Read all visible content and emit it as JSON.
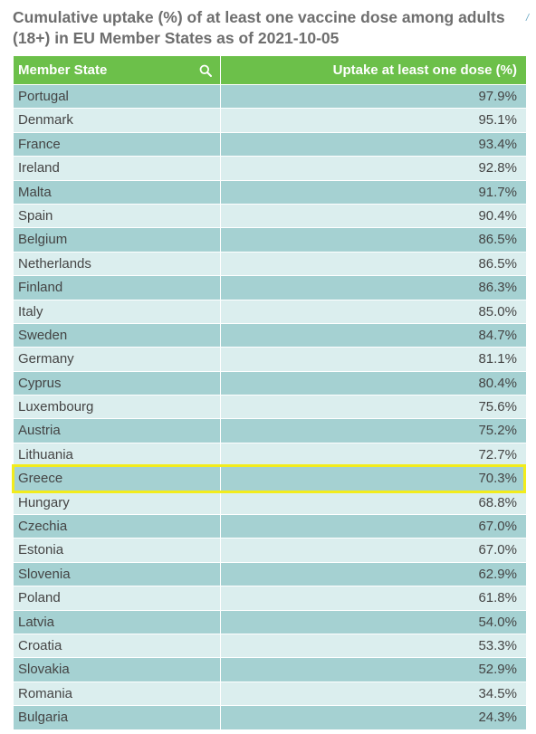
{
  "title_lines": [
    "Cumulative uptake (%) of at least one vaccine dose among adults",
    "(18+) in EU Member States as of 2021-10-05"
  ],
  "corner_mark": "/",
  "header": {
    "state": "Member State",
    "uptake": "Uptake at least one dose (%)"
  },
  "highlight": "Greece",
  "colors": {
    "header": "#6cc04a",
    "row_odd": "#a5d1d2",
    "row_even": "#dbeeee",
    "highlight_border": "#f2ec1c"
  },
  "icons": {
    "search": "search-icon",
    "sort": "sort-descending-icon"
  },
  "chart_data": {
    "type": "table",
    "title": "Cumulative uptake (%) of at least one vaccine dose among adults (18+) in EU Member States as of 2021-10-05",
    "columns": [
      "Member State",
      "Uptake at least one dose (%)"
    ],
    "sort": "descending",
    "rows": [
      {
        "state": "Portugal",
        "uptake": "97.9%"
      },
      {
        "state": "Denmark",
        "uptake": "95.1%"
      },
      {
        "state": "France",
        "uptake": "93.4%"
      },
      {
        "state": "Ireland",
        "uptake": "92.8%"
      },
      {
        "state": "Malta",
        "uptake": "91.7%"
      },
      {
        "state": "Spain",
        "uptake": "90.4%"
      },
      {
        "state": "Belgium",
        "uptake": "86.5%"
      },
      {
        "state": "Netherlands",
        "uptake": "86.5%"
      },
      {
        "state": "Finland",
        "uptake": "86.3%"
      },
      {
        "state": "Italy",
        "uptake": "85.0%"
      },
      {
        "state": "Sweden",
        "uptake": "84.7%"
      },
      {
        "state": "Germany",
        "uptake": "81.1%"
      },
      {
        "state": "Cyprus",
        "uptake": "80.4%"
      },
      {
        "state": "Luxembourg",
        "uptake": "75.6%"
      },
      {
        "state": "Austria",
        "uptake": "75.2%"
      },
      {
        "state": "Lithuania",
        "uptake": "72.7%"
      },
      {
        "state": "Greece",
        "uptake": "70.3%"
      },
      {
        "state": "Hungary",
        "uptake": "68.8%"
      },
      {
        "state": "Czechia",
        "uptake": "67.0%"
      },
      {
        "state": "Estonia",
        "uptake": "67.0%"
      },
      {
        "state": "Slovenia",
        "uptake": "62.9%"
      },
      {
        "state": "Poland",
        "uptake": "61.8%"
      },
      {
        "state": "Latvia",
        "uptake": "54.0%"
      },
      {
        "state": "Croatia",
        "uptake": "53.3%"
      },
      {
        "state": "Slovakia",
        "uptake": "52.9%"
      },
      {
        "state": "Romania",
        "uptake": "34.5%"
      },
      {
        "state": "Bulgaria",
        "uptake": "24.3%"
      }
    ]
  }
}
